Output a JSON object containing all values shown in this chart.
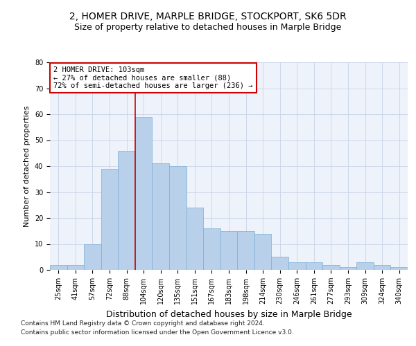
{
  "title1": "2, HOMER DRIVE, MARPLE BRIDGE, STOCKPORT, SK6 5DR",
  "title2": "Size of property relative to detached houses in Marple Bridge",
  "xlabel": "Distribution of detached houses by size in Marple Bridge",
  "ylabel": "Number of detached properties",
  "categories": [
    "25sqm",
    "41sqm",
    "57sqm",
    "72sqm",
    "88sqm",
    "104sqm",
    "120sqm",
    "135sqm",
    "151sqm",
    "167sqm",
    "183sqm",
    "198sqm",
    "214sqm",
    "230sqm",
    "246sqm",
    "261sqm",
    "277sqm",
    "293sqm",
    "309sqm",
    "324sqm",
    "340sqm"
  ],
  "values": [
    2,
    2,
    10,
    39,
    46,
    59,
    41,
    40,
    24,
    16,
    15,
    15,
    14,
    5,
    3,
    3,
    2,
    1,
    3,
    2,
    1
  ],
  "bar_color": "#b8d0ea",
  "bar_edge_color": "#7aaed4",
  "property_label": "2 HOMER DRIVE: 103sqm",
  "annotation_line1": "← 27% of detached houses are smaller (88)",
  "annotation_line2": "72% of semi-detached houses are larger (236) →",
  "annotation_box_color": "#ffffff",
  "annotation_box_edge_color": "#cc0000",
  "red_line_color": "#cc0000",
  "footnote1": "Contains HM Land Registry data © Crown copyright and database right 2024.",
  "footnote2": "Contains public sector information licensed under the Open Government Licence v3.0.",
  "ylim": [
    0,
    80
  ],
  "bar_width": 1.0,
  "title1_fontsize": 10,
  "title2_fontsize": 9,
  "xlabel_fontsize": 9,
  "ylabel_fontsize": 8,
  "tick_fontsize": 7,
  "annotation_fontsize": 7.5,
  "footnote_fontsize": 6.5
}
